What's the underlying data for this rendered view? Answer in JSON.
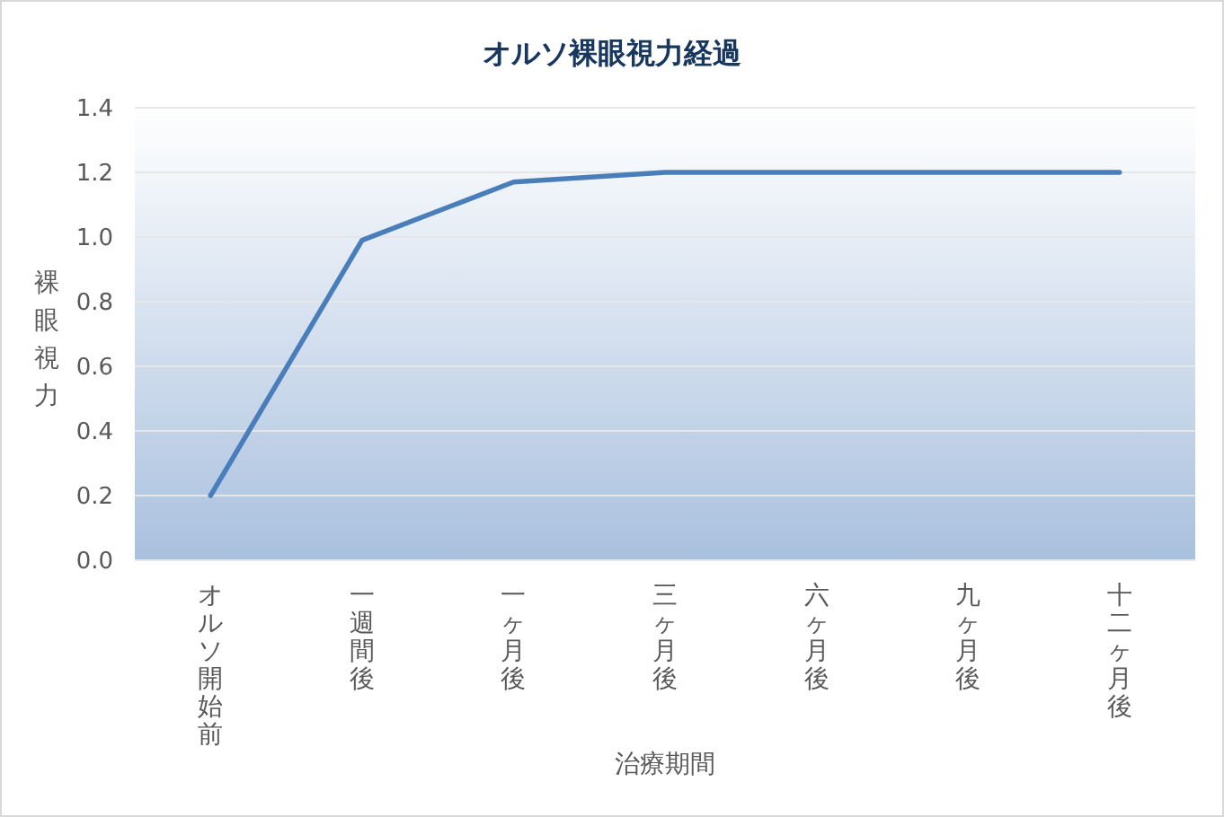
{
  "chart_data": {
    "type": "line",
    "title": "オルソ裸眼視力経過",
    "xlabel": "治療期間",
    "ylabel": "裸眼視力",
    "categories": [
      "オルソ開始前",
      "一週間後",
      "一ヶ月後",
      "三ヶ月後",
      "六ヶ月後",
      "九ヶ月後",
      "十二ヶ月後"
    ],
    "series": [
      {
        "color": "#4a7ebb",
        "values": [
          0.2,
          0.99,
          1.17,
          1.2,
          1.2,
          1.2,
          1.2
        ]
      }
    ],
    "ylim": [
      0,
      1.4
    ],
    "yticks": [
      {
        "value": 0,
        "label": "0.0"
      },
      0.2,
      0.4,
      0.6,
      0.8,
      {
        "value": 1,
        "label": "1.0"
      },
      1.2,
      1.4
    ],
    "grid": "y",
    "marker": "none",
    "line_style": "solid"
  }
}
